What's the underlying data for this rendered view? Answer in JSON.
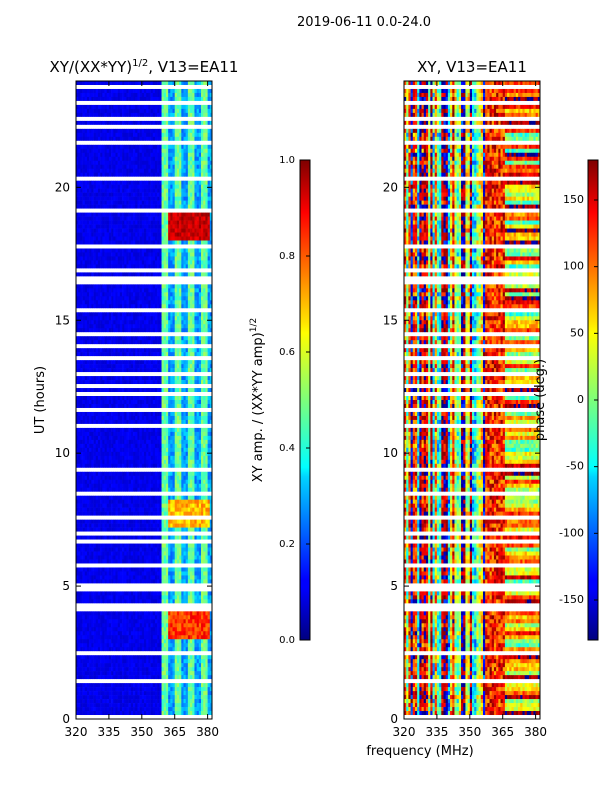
{
  "figure": {
    "suptitle": "2019-06-11 0.0-24.0",
    "xlabel": "frequency (MHz)"
  },
  "chart_data": [
    {
      "type": "heatmap",
      "title_main": "XY/(XX*YY)",
      "title_exp": "1/2",
      "title_rest": ", V13=EA11",
      "xlabel": "",
      "ylabel": "UT (hours)",
      "xlim": [
        320,
        382
      ],
      "ylim": [
        0,
        24
      ],
      "xticks": [
        320,
        335,
        350,
        365,
        380
      ],
      "yticks": [
        0,
        5,
        10,
        15,
        20
      ],
      "colorbar": {
        "label_main": "XY amp. / (XX*YY amp)",
        "label_exp": "1/2",
        "range": [
          0.0,
          1.0
        ],
        "ticks": [
          "0.0",
          "0.2",
          "0.4",
          "0.6",
          "0.8",
          "1.0"
        ]
      },
      "notes": "Low amplitude (~0.05) from 320-359 MHz; ~0.3-0.5 with bright vertical channels from 359-382 MHz; high values (~0.9) near 18-19 UT and 3-4 UT, ~0.7 near 7-8 UT at 362-381 MHz."
    },
    {
      "type": "heatmap",
      "title_main": "XY, V13=EA11",
      "xlabel": "",
      "ylabel": "",
      "xlim": [
        320,
        382
      ],
      "ylim": [
        0,
        24
      ],
      "xticks": [
        320,
        335,
        350,
        365,
        380
      ],
      "yticks": [
        0,
        5,
        10,
        15,
        20
      ],
      "colorbar": {
        "label_main": "phase (deg.)",
        "range": [
          -180,
          180
        ],
        "ticks": [
          "-150",
          "-100",
          "-50",
          "0",
          "50",
          "100",
          "150"
        ]
      },
      "notes": "Phase varies widely across full range; vertical striping 320-360 MHz, horizontal banding and red regions near 355-365 MHz."
    }
  ]
}
